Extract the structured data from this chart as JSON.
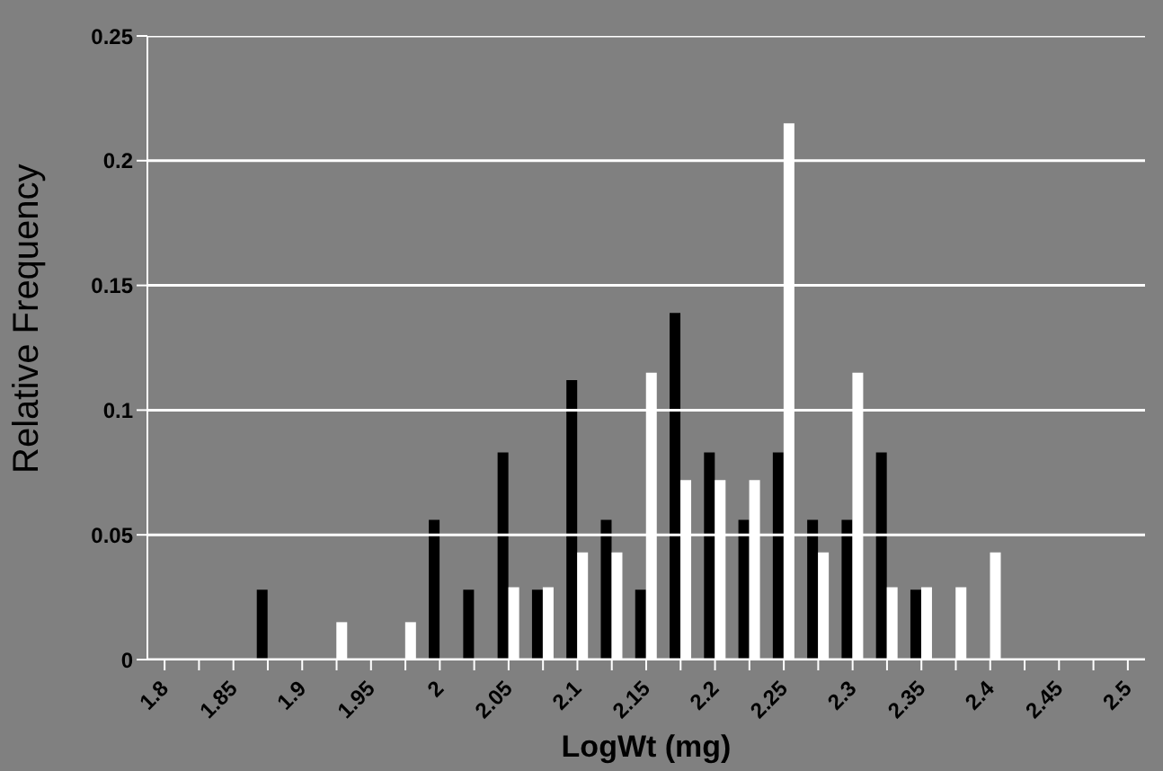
{
  "chart_data": {
    "type": "bar",
    "xlabel": "LogWt (mg)",
    "ylabel": "Relative Frequency",
    "categories": [
      "1.8",
      null,
      "1.85",
      null,
      "1.9",
      null,
      "1.95",
      null,
      "2",
      null,
      "2.05",
      null,
      "2.1",
      null,
      "2.15",
      null,
      "2.2",
      null,
      "2.25",
      null,
      "2.3",
      null,
      "2.35",
      null,
      "2.4",
      null,
      "2.45",
      null,
      "2.5"
    ],
    "series": [
      {
        "color": "#000000",
        "values": [
          0,
          0,
          0,
          0.028,
          0,
          0,
          0,
          0,
          0.056,
          0.028,
          0.083,
          0.028,
          0.112,
          0.056,
          0.028,
          0.139,
          0.083,
          0.056,
          0.083,
          0.056,
          0.056,
          0.083,
          0.028,
          0,
          0,
          0,
          0,
          0,
          0
        ]
      },
      {
        "color": "#ffffff",
        "values": [
          0,
          0,
          0,
          0,
          0,
          0.015,
          0,
          0.015,
          0,
          0,
          0.029,
          0.029,
          0.043,
          0.043,
          0.115,
          0.072,
          0.072,
          0.072,
          0.215,
          0.043,
          0.115,
          0.029,
          0.029,
          0.029,
          0.043,
          0,
          0,
          0,
          0
        ]
      }
    ],
    "ylim": [
      0,
      0.25
    ],
    "yticks": [
      0,
      0.05,
      0.1,
      0.15,
      0.2,
      0.25
    ],
    "grid": "y",
    "legend": false
  }
}
